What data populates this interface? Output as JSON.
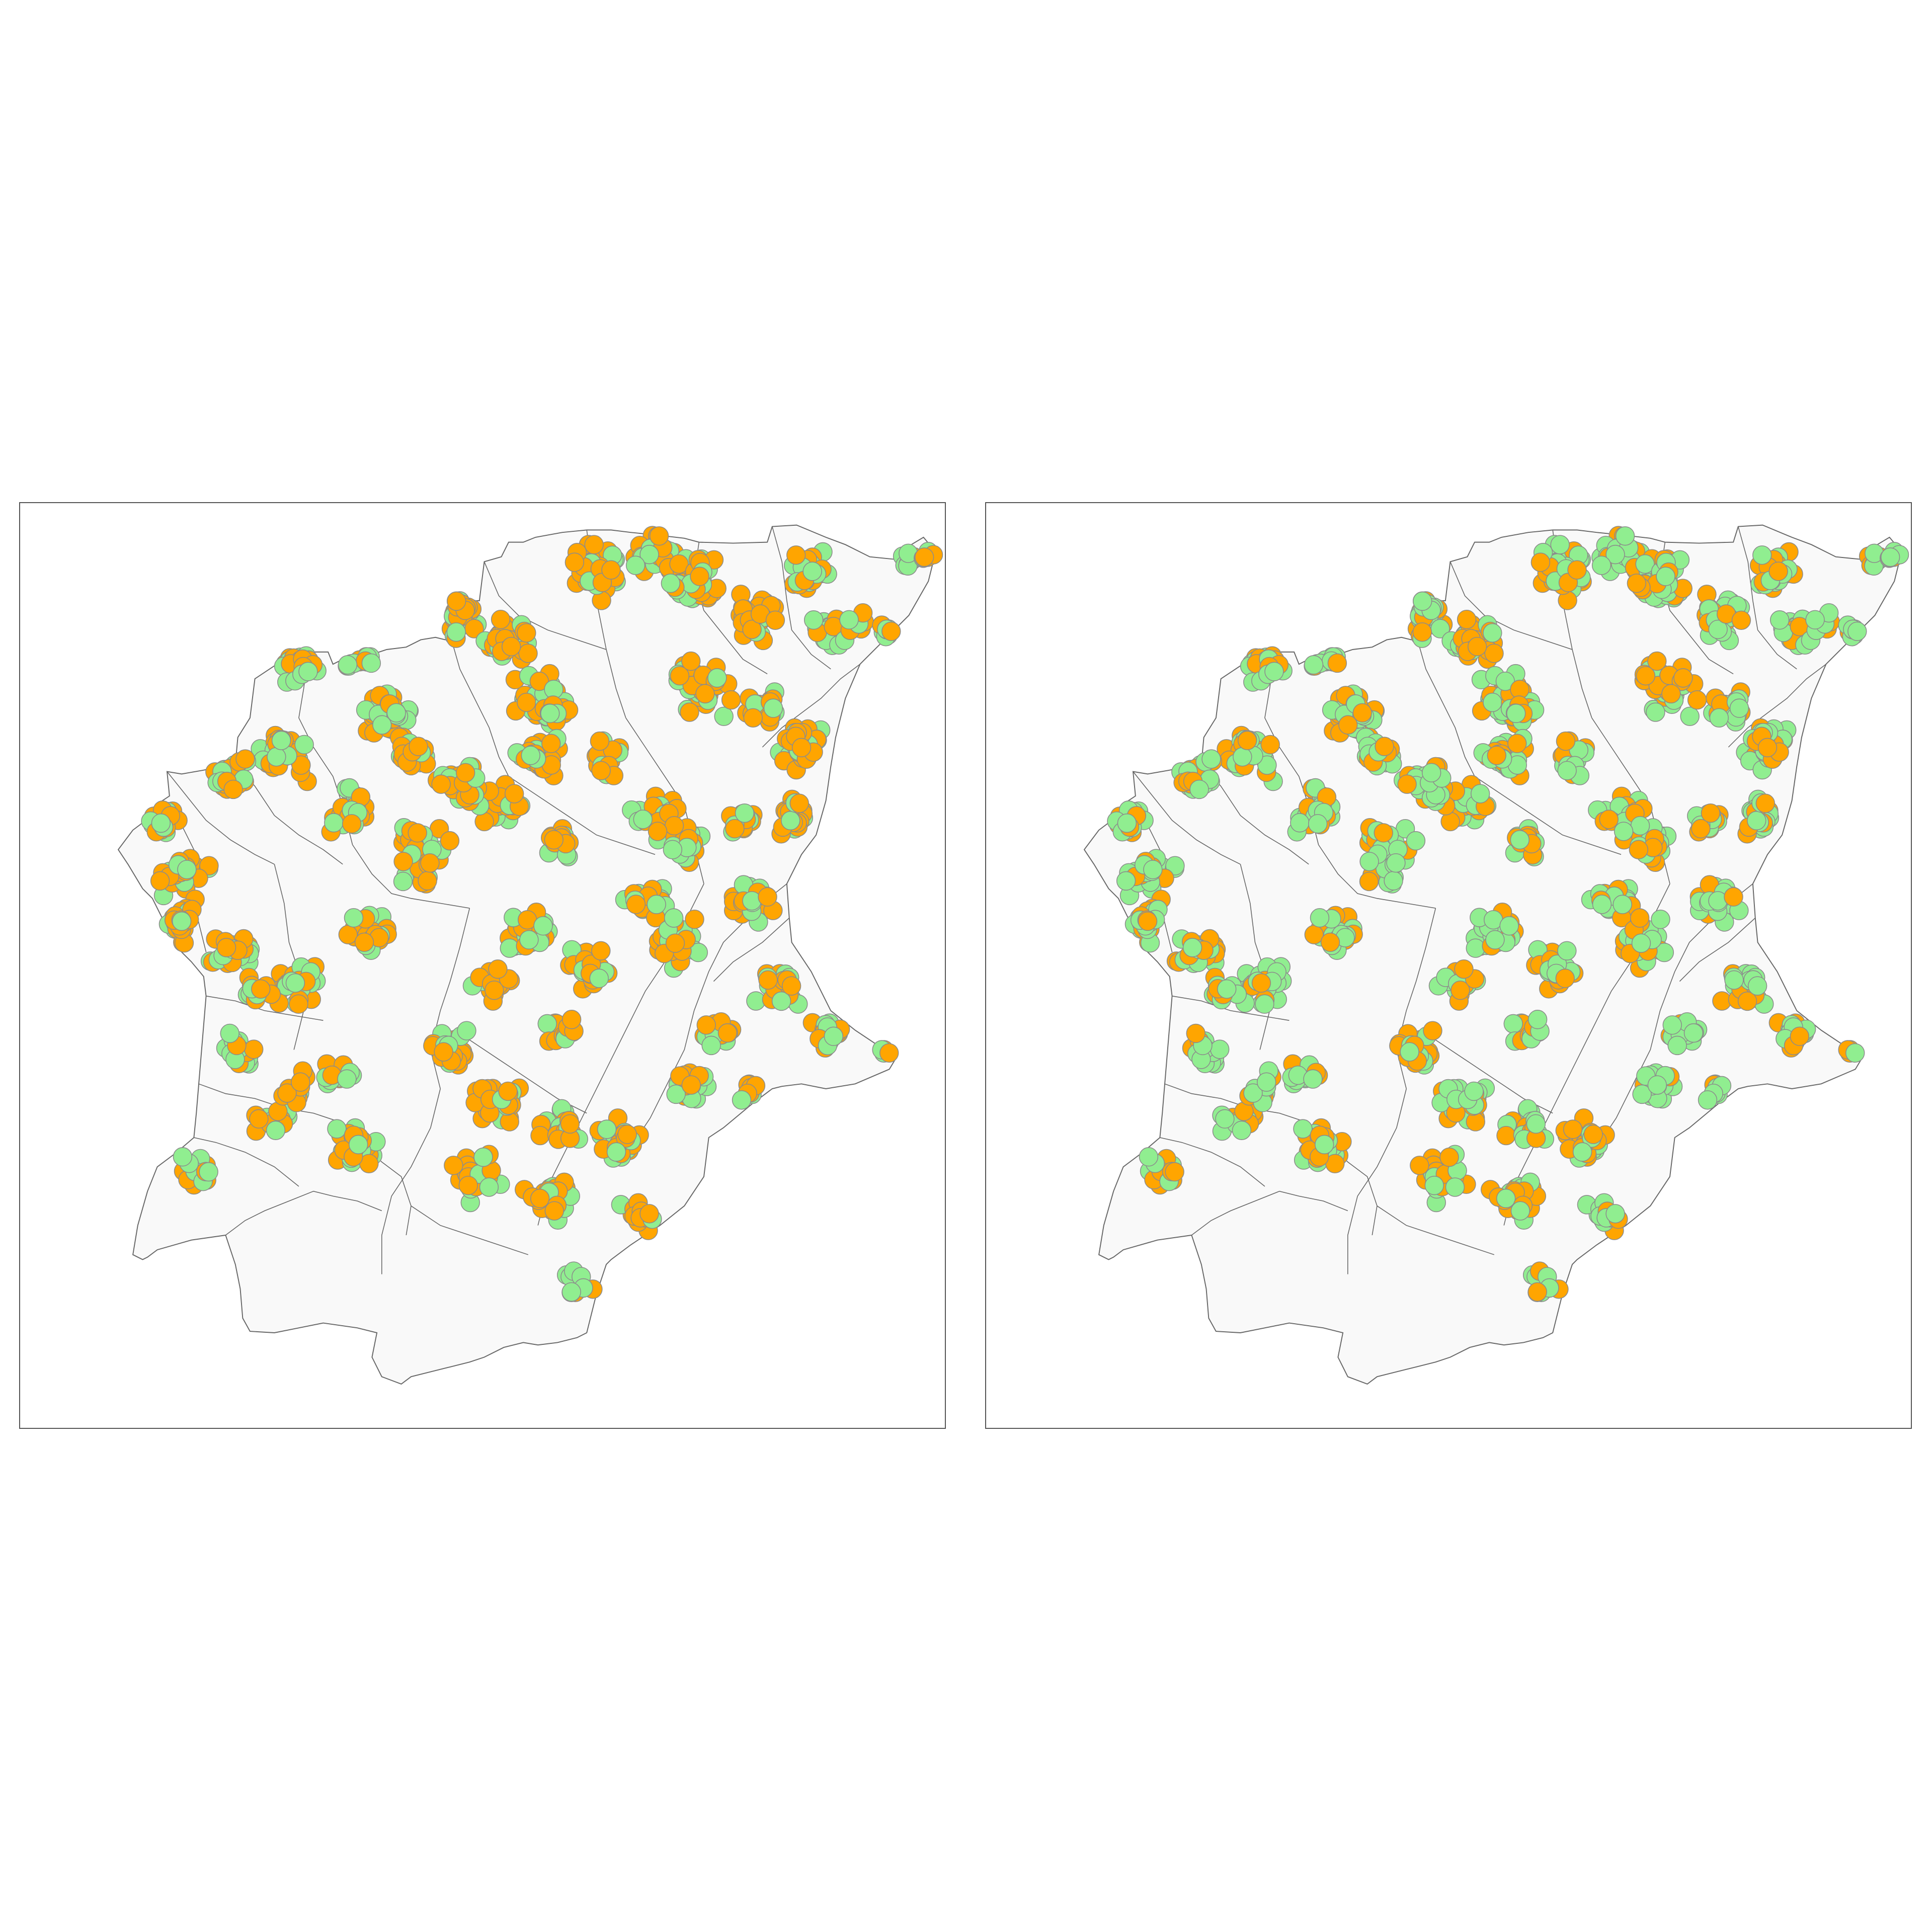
{
  "figure": {
    "panels": [
      {
        "id": "left",
        "seed": 11,
        "green_share": 0.4
      },
      {
        "id": "right",
        "seed": 29,
        "green_share": 0.58
      }
    ]
  },
  "colors": {
    "category_a": "#ffa500",
    "category_b": "#90ee90",
    "marker_edge": "#8c8c8c",
    "region_fill": "#f9f9f9",
    "region_border": "#666666",
    "panel_border": "#555555"
  }
}
